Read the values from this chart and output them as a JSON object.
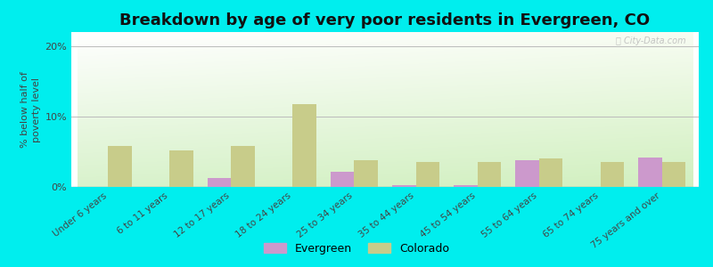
{
  "title": "Breakdown by age of very poor residents in Evergreen, CO",
  "ylabel": "% below half of\npoverty level",
  "categories": [
    "Under 6 years",
    "6 to 11 years",
    "12 to 17 years",
    "18 to 24 years",
    "25 to 34 years",
    "35 to 44 years",
    "45 to 54 years",
    "55 to 64 years",
    "65 to 74 years",
    "75 years and over"
  ],
  "evergreen_values": [
    0,
    0,
    1.3,
    0,
    2.2,
    0.3,
    0.3,
    3.8,
    0,
    4.2
  ],
  "colorado_values": [
    5.8,
    5.2,
    5.8,
    11.8,
    3.8,
    3.5,
    3.5,
    4.0,
    3.5,
    3.5
  ],
  "evergreen_color": "#cc99cc",
  "colorado_color": "#c8cc8a",
  "background_color": "#00eeee",
  "ylim": [
    0,
    22
  ],
  "yticks": [
    0,
    10,
    20
  ],
  "ytick_labels": [
    "0%",
    "10%",
    "20%"
  ],
  "bar_width": 0.38,
  "title_fontsize": 13,
  "axis_label_fontsize": 8,
  "tick_fontsize": 8,
  "legend_fontsize": 9,
  "watermark": "ⓘ City-Data.com"
}
